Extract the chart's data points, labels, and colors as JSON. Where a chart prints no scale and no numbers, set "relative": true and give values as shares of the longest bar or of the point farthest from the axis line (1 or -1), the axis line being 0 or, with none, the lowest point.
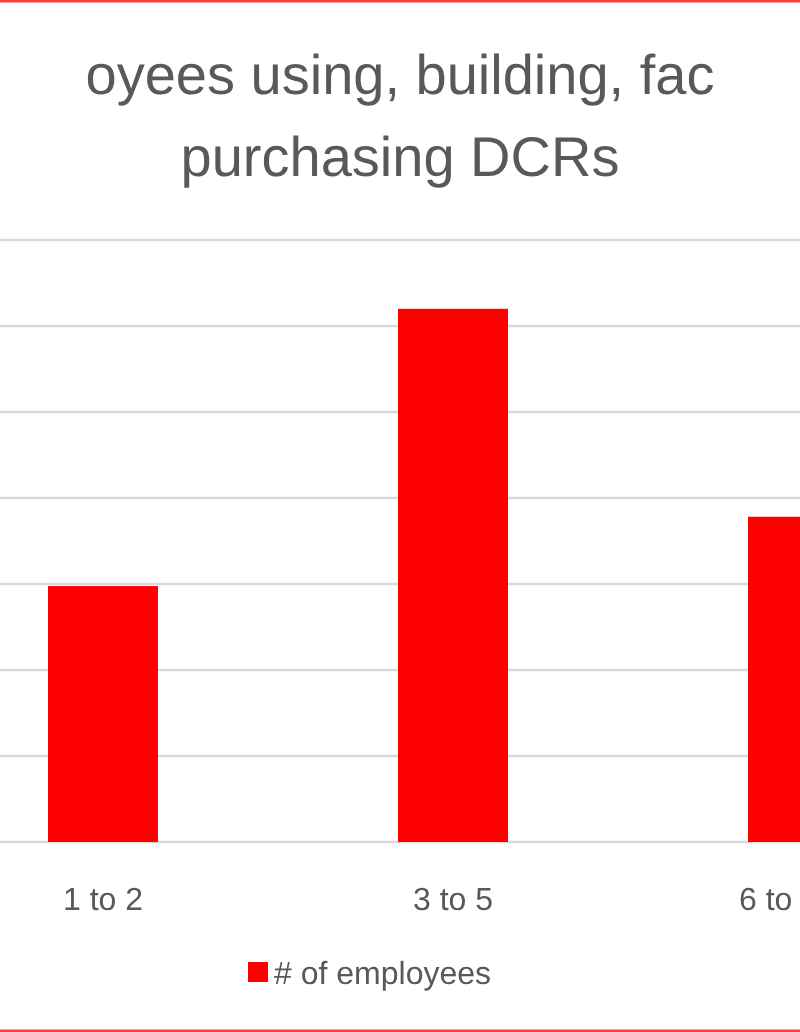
{
  "chart_data": {
    "type": "bar",
    "title": "oyees using, building, fac\npurchasing DCRs",
    "categories": [
      "1 to 2",
      "3 to 5",
      "6 to"
    ],
    "series": [
      {
        "name": "# of employees",
        "color": "#ff0000",
        "values": [
          0.48,
          1,
          0.61
        ]
      }
    ],
    "relative": true,
    "grid": "y",
    "legend": "bottom"
  }
}
